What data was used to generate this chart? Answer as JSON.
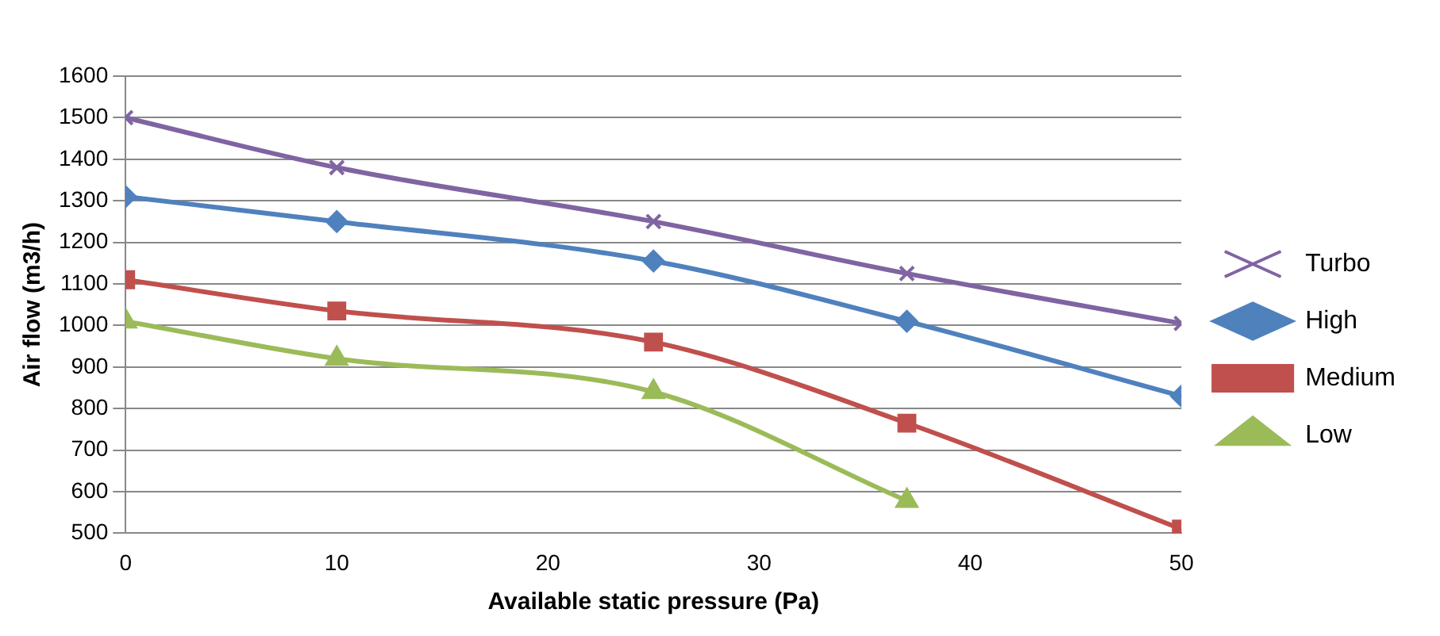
{
  "chart_data": {
    "type": "line",
    "xlabel": "Available static pressure (Pa)",
    "ylabel": "Air flow (m3/h)",
    "xlim": [
      0,
      50
    ],
    "xticks": [
      0,
      10,
      20,
      30,
      40,
      50
    ],
    "ylim": [
      500,
      1600
    ],
    "yticks": [
      500,
      600,
      700,
      800,
      900,
      1000,
      1100,
      1200,
      1300,
      1400,
      1500,
      1600
    ],
    "grid": "y",
    "legend": "right",
    "series": [
      {
        "name": "Turbo",
        "color": "#8064a2",
        "marker": "cross",
        "x": [
          0,
          10,
          25,
          37,
          50
        ],
        "values": [
          1500,
          1380,
          1250,
          1125,
          1005
        ]
      },
      {
        "name": "High",
        "color": "#4f81bd",
        "marker": "diamond",
        "x": [
          0,
          10,
          25,
          37,
          50
        ],
        "values": [
          1310,
          1250,
          1155,
          1010,
          830
        ]
      },
      {
        "name": "Medium",
        "color": "#c0504d",
        "marker": "square",
        "x": [
          0,
          10,
          25,
          37,
          50
        ],
        "values": [
          1110,
          1035,
          960,
          765,
          510
        ]
      },
      {
        "name": "Low",
        "color": "#9bbb59",
        "marker": "triangle",
        "x": [
          0,
          10,
          25,
          37
        ],
        "values": [
          1010,
          920,
          840,
          578
        ]
      }
    ]
  }
}
